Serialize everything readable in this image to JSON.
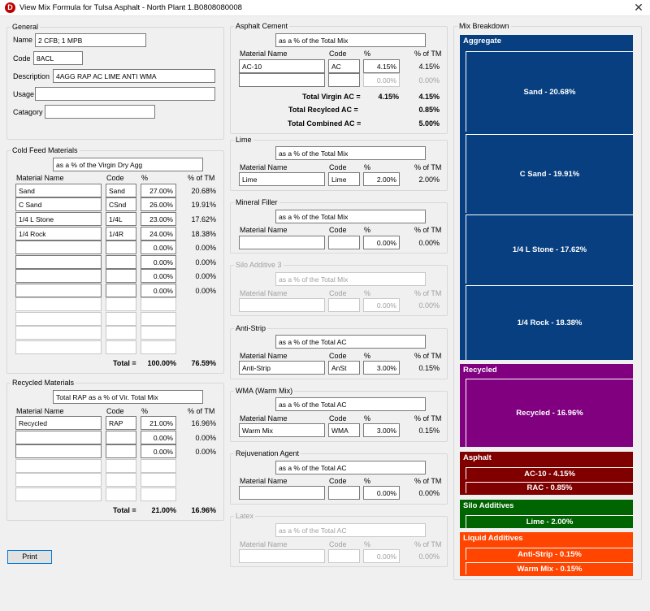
{
  "window": {
    "title": "View Mix Formula for Tulsa Asphalt - North Plant  1.B0808080008",
    "icon_letter": "D"
  },
  "general": {
    "title": "General",
    "name_label": "Name",
    "name_value": "2 CFB; 1 MPB",
    "code_label": "Code",
    "code_value": "8ACL",
    "description_label": "Description",
    "description_value": "4AGG RAP AC LIME ANTI WMA",
    "usage_label": "Usage",
    "usage_value": "",
    "category_label": "Catagory",
    "category_value": ""
  },
  "headers": {
    "material": "Material Name",
    "code": "Code",
    "pct": "%",
    "pct_tm": "% of TM"
  },
  "cold_feed": {
    "title": "Cold Feed Materials",
    "basis": "as a % of the Virgin Dry Agg",
    "rows": [
      {
        "name": "Sand",
        "code": "Sand",
        "pct": "27.00%",
        "tm": "20.68%"
      },
      {
        "name": "C Sand",
        "code": "CSnd",
        "pct": "26.00%",
        "tm": "19.91%"
      },
      {
        "name": "1/4 L Stone",
        "code": "1/4L",
        "pct": "23.00%",
        "tm": "17.62%"
      },
      {
        "name": "1/4 Rock",
        "code": "1/4R",
        "pct": "24.00%",
        "tm": "18.38%"
      },
      {
        "name": "",
        "code": "",
        "pct": "0.00%",
        "tm": "0.00%"
      },
      {
        "name": "",
        "code": "",
        "pct": "0.00%",
        "tm": "0.00%"
      },
      {
        "name": "",
        "code": "",
        "pct": "0.00%",
        "tm": "0.00%"
      },
      {
        "name": "",
        "code": "",
        "pct": "0.00%",
        "tm": "0.00%"
      }
    ],
    "total_label": "Total =",
    "total_pct": "100.00%",
    "total_tm": "76.59%"
  },
  "recycled": {
    "title": "Recycled Materials",
    "basis": "Total RAP as a % of Vir. Total Mix",
    "rows": [
      {
        "name": "Recycled",
        "code": "RAP",
        "pct": "21.00%",
        "tm": "16.96%"
      },
      {
        "name": "",
        "code": "",
        "pct": "0.00%",
        "tm": "0.00%"
      },
      {
        "name": "",
        "code": "",
        "pct": "0.00%",
        "tm": "0.00%"
      }
    ],
    "total_label": "Total =",
    "total_pct": "21.00%",
    "total_tm": "16.96%"
  },
  "print_label": "Print",
  "asphalt_cement": {
    "title": "Asphalt Cement",
    "basis": "as a % of the Total Mix",
    "rows": [
      {
        "name": "AC-10",
        "code": "AC",
        "pct": "4.15%",
        "tm": "4.15%"
      },
      {
        "name": "",
        "code": "",
        "pct": "0.00%",
        "tm": "0.00%"
      }
    ],
    "totals": [
      {
        "label": "Total Virgin AC =",
        "pct": "4.15%",
        "tm": "4.15%"
      },
      {
        "label": "Total Recylced AC =",
        "pct": "",
        "tm": "0.85%"
      },
      {
        "label": "Total Combined AC =",
        "pct": "",
        "tm": "5.00%"
      }
    ]
  },
  "additives": [
    {
      "title": "Lime",
      "basis": "as a % of the Total Mix",
      "name": "Lime",
      "code": "Lime",
      "pct": "2.00%",
      "tm": "2.00%",
      "disabled": false
    },
    {
      "title": "Mineral Filler",
      "basis": "as a % of the Total Mix",
      "name": "",
      "code": "",
      "pct": "0.00%",
      "tm": "0.00%",
      "disabled": false
    },
    {
      "title": "Silo Additive 3",
      "basis": "as a % of the Total Mix",
      "name": "",
      "code": "",
      "pct": "0.00%",
      "tm": "0.00%",
      "disabled": true
    },
    {
      "title": "Anti-Strip",
      "basis": "as a % of the Total AC",
      "name": "Anti-Strip",
      "code": "AnSt",
      "pct": "3.00%",
      "tm": "0.15%",
      "disabled": false
    },
    {
      "title": "WMA (Warm Mix)",
      "basis": "as a % of the Total AC",
      "name": "Warm Mix",
      "code": "WMA",
      "pct": "3.00%",
      "tm": "0.15%",
      "disabled": false
    },
    {
      "title": "Rejuvenation Agent",
      "basis": "as a % of the Total AC",
      "name": "",
      "code": "",
      "pct": "0.00%",
      "tm": "0.00%",
      "disabled": false
    },
    {
      "title": "Latex",
      "basis": "as a % of the Total AC",
      "name": "",
      "code": "",
      "pct": "0.00%",
      "tm": "0.00%",
      "disabled": true
    }
  ],
  "breakdown": {
    "title": "Mix Breakdown",
    "colors": {
      "aggregate": "#073f80",
      "recycled": "#800080",
      "asphalt": "#800000",
      "silo": "#006400",
      "liquid": "#ff4500"
    },
    "aggregate": {
      "header": "Aggregate",
      "items": [
        "Sand - 20.68%",
        "C Sand - 19.91%",
        "1/4 L Stone - 17.62%",
        "1/4 Rock - 18.38%"
      ]
    },
    "recycled": {
      "header": "Recycled",
      "items": [
        "Recycled - 16.96%"
      ]
    },
    "asphalt": {
      "header": "Asphalt",
      "items": [
        "AC-10 - 4.15%",
        "RAC - 0.85%"
      ]
    },
    "silo": {
      "header": "Silo Additives",
      "items": [
        "Lime - 2.00%"
      ]
    },
    "liquid": {
      "header": "Liquid Additives",
      "items": [
        "Anti-Strip - 0.15%",
        "Warm Mix - 0.15%"
      ]
    }
  }
}
